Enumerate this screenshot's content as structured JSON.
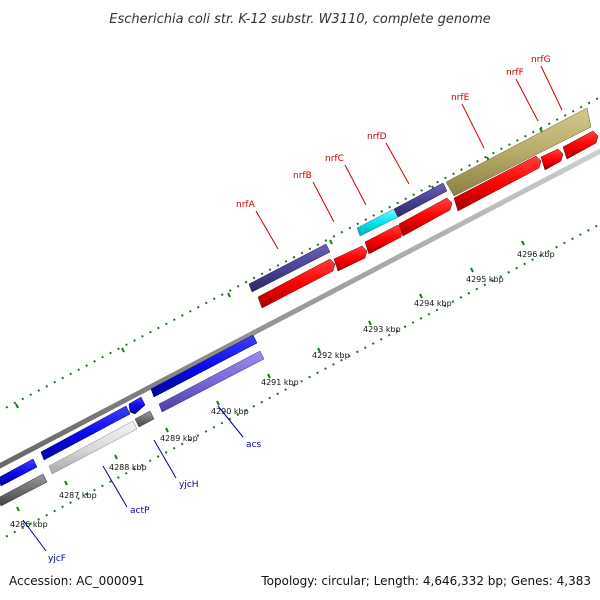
{
  "header": {
    "title": "Escherichia coli str. K-12 substr. W3110, complete genome"
  },
  "footer": {
    "accession": "Accession: AC_000091",
    "summary": "Topology: circular; Length: 4,646,332 bp; Genes: 4,383"
  },
  "colors": {
    "background": "#ffffff",
    "backbone": "#999999",
    "tick_marks": "#1a7a1a",
    "forward_gene_label": "#cc0000",
    "reverse_gene_label": "#0000aa"
  },
  "scale": {
    "unit": "kbp",
    "ticks": [
      {
        "kbp": 4286,
        "label": "4286 kbp"
      },
      {
        "kbp": 4287,
        "label": "4287 kbp"
      },
      {
        "kbp": 4288,
        "label": "4288 kbp"
      },
      {
        "kbp": 4289,
        "label": "4289 kbp"
      },
      {
        "kbp": 4290,
        "label": "4290 kbp"
      },
      {
        "kbp": 4291,
        "label": "4291 kbp"
      },
      {
        "kbp": 4292,
        "label": "4292 kbp"
      },
      {
        "kbp": 4293,
        "label": "4293 kbp"
      },
      {
        "kbp": 4294,
        "label": "4294 kbp"
      },
      {
        "kbp": 4295,
        "label": "4295 kbp"
      },
      {
        "kbp": 4296,
        "label": "4296 kbp"
      }
    ]
  },
  "gene_labels": [
    {
      "name": "nrfA",
      "color": "#cc0000"
    },
    {
      "name": "nrfB",
      "color": "#cc0000"
    },
    {
      "name": "nrfC",
      "color": "#cc0000"
    },
    {
      "name": "nrfD",
      "color": "#cc0000"
    },
    {
      "name": "nrfE",
      "color": "#cc0000"
    },
    {
      "name": "nrfF",
      "color": "#cc0000"
    },
    {
      "name": "nrfG",
      "color": "#cc0000"
    },
    {
      "name": "acs",
      "color": "#0000aa"
    },
    {
      "name": "yjcH",
      "color": "#0000aa"
    },
    {
      "name": "actP",
      "color": "#0000aa"
    },
    {
      "name": "yjcF",
      "color": "#0000aa"
    }
  ]
}
